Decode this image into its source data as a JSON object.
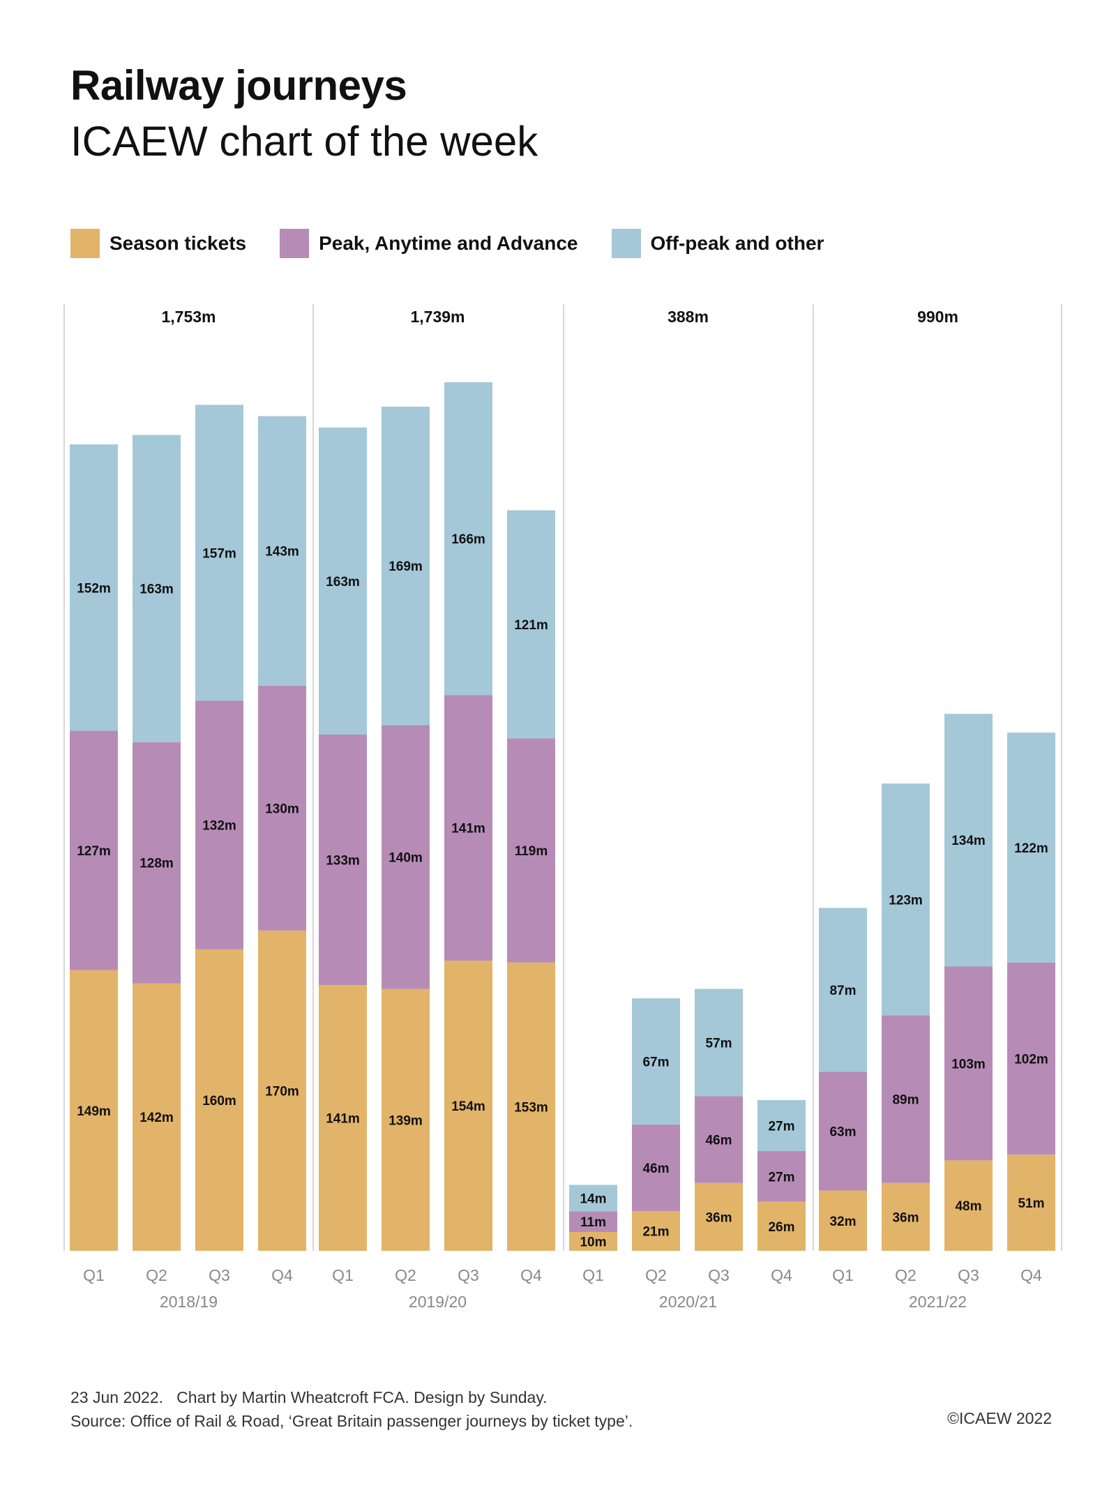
{
  "header": {
    "title": "Railway journeys",
    "subtitle": "ICAEW chart of the week"
  },
  "footer": {
    "line1": "23 Jun 2022.   Chart by Martin Wheatcroft FCA. Design by Sunday.",
    "line2": "Source: Office of Rail & Road, ‘Great Britain passenger journeys by ticket type’.",
    "copyright": "©ICAEW 2022"
  },
  "chart_data": {
    "type": "bar",
    "stacked": true,
    "unit": "m",
    "legend": "top-left",
    "grid": false,
    "categories": [
      "Q1",
      "Q2",
      "Q3",
      "Q4",
      "Q1",
      "Q2",
      "Q3",
      "Q4",
      "Q1",
      "Q2",
      "Q3",
      "Q4",
      "Q1",
      "Q2",
      "Q3",
      "Q4"
    ],
    "groups": [
      {
        "label": "2018/19",
        "total": "1,753m"
      },
      {
        "label": "2019/20",
        "total": "1,739m"
      },
      {
        "label": "2020/21",
        "total": "388m"
      },
      {
        "label": "2021/22",
        "total": "990m"
      }
    ],
    "series": [
      {
        "name": "Season tickets",
        "color": "#E2B469",
        "values": [
          149,
          142,
          160,
          170,
          141,
          139,
          154,
          153,
          10,
          21,
          36,
          26,
          32,
          36,
          48,
          51
        ]
      },
      {
        "name": "Peak, Anytime and Advance",
        "color": "#B68CB6",
        "values": [
          127,
          128,
          132,
          130,
          133,
          140,
          141,
          119,
          11,
          46,
          46,
          27,
          63,
          89,
          103,
          102
        ]
      },
      {
        "name": "Off-peak and other",
        "color": "#A4C8D7",
        "values": [
          152,
          163,
          157,
          143,
          163,
          169,
          166,
          121,
          14,
          67,
          57,
          27,
          87,
          123,
          134,
          122
        ]
      }
    ]
  }
}
